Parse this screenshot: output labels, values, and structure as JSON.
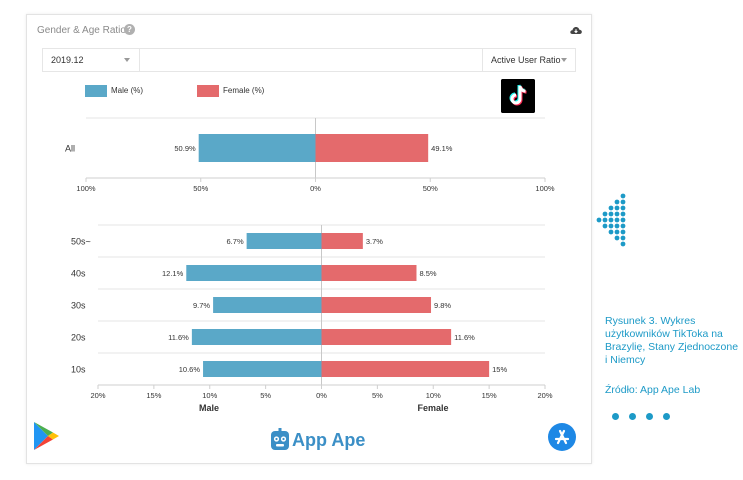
{
  "widget": {
    "title": "Gender & Age Ratio",
    "help_icon": "question-circle-icon",
    "download_icon": "cloud-download-icon",
    "date_value": "2019.12",
    "ratio_value": "Active User Ratio"
  },
  "legend": {
    "male": "Male (%)",
    "female": "Female (%)"
  },
  "colors": {
    "male": "#5aa8c8",
    "female": "#e46a6c"
  },
  "chart_data": [
    {
      "type": "bar",
      "orientation": "horizontal-diverging",
      "categories": [
        "All"
      ],
      "series": [
        {
          "name": "Male (%)",
          "values": [
            50.9
          ],
          "labels": [
            "50.9%"
          ]
        },
        {
          "name": "Female (%)",
          "values": [
            49.1
          ],
          "labels": [
            "49.1%"
          ]
        }
      ],
      "xlim": [
        -100,
        100
      ],
      "xticks": [
        "100%",
        "50%",
        "0%",
        "50%",
        "100%"
      ]
    },
    {
      "type": "bar",
      "orientation": "horizontal-diverging",
      "categories": [
        "50s~",
        "40s",
        "30s",
        "20s",
        "10s"
      ],
      "series": [
        {
          "name": "Male",
          "values": [
            6.7,
            12.1,
            9.7,
            11.6,
            10.6
          ],
          "labels": [
            "6.7%",
            "12.1%",
            "9.7%",
            "11.6%",
            "10.6%"
          ]
        },
        {
          "name": "Female",
          "values": [
            3.7,
            8.5,
            9.8,
            11.6,
            15
          ],
          "labels": [
            "3.7%",
            "8.5%",
            "9.8%",
            "11.6%",
            "15%"
          ]
        }
      ],
      "xlim": [
        -20,
        20
      ],
      "xticks": [
        "20%",
        "15%",
        "10%",
        "5%",
        "0%",
        "5%",
        "10%",
        "15%",
        "20%"
      ],
      "xlabel_left": "Male",
      "xlabel_right": "Female"
    }
  ],
  "branding": {
    "app_name": "App Ape",
    "google_play_icon": "google-play-icon",
    "app_store_icon": "app-store-icon",
    "tiktok_icon": "tiktok-logo-icon"
  },
  "caption": {
    "text": "Rysunek 3. Wykres użytkowników TikToka na Brazylię, Stany Zjednoczone i Niemcy",
    "source": "Źródło: App Ape Lab"
  }
}
